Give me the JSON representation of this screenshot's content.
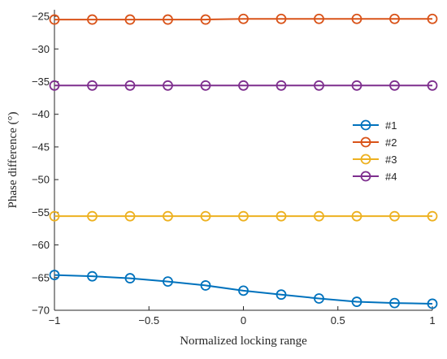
{
  "chart_data": {
    "type": "line",
    "xlabel": "Normalized locking range",
    "ylabel": "Phase difference (°)",
    "xlim": [
      -1,
      1
    ],
    "ylim": [
      -70,
      -24
    ],
    "x_ticks": [
      -1,
      -0.5,
      0,
      0.5,
      1
    ],
    "x_tick_labels": [
      "−1",
      "−0.5",
      "0",
      "0.5",
      "1"
    ],
    "y_ticks": [
      -25,
      -30,
      -35,
      -40,
      -45,
      -50,
      -55,
      -60,
      -65,
      -70
    ],
    "y_tick_labels": [
      "−25",
      "−30",
      "−35",
      "−40",
      "−45",
      "−50",
      "−55",
      "−60",
      "−65",
      "−70"
    ],
    "grid": false,
    "legend_position": "center-right",
    "x": [
      -1,
      -0.8,
      -0.6,
      -0.4,
      -0.2,
      0,
      0.2,
      0.4,
      0.6,
      0.8,
      1
    ],
    "series": [
      {
        "name": "#1",
        "color": "#0072BD",
        "values": [
          -64.6,
          -64.8,
          -65.1,
          -65.6,
          -66.2,
          -67.0,
          -67.6,
          -68.2,
          -68.7,
          -68.9,
          -69.0
        ]
      },
      {
        "name": "#2",
        "color": "#D95319",
        "values": [
          -25.5,
          -25.5,
          -25.5,
          -25.5,
          -25.5,
          -25.4,
          -25.4,
          -25.4,
          -25.4,
          -25.4,
          -25.4
        ]
      },
      {
        "name": "#3",
        "color": "#EDB120",
        "values": [
          -55.6,
          -55.6,
          -55.6,
          -55.6,
          -55.6,
          -55.6,
          -55.6,
          -55.6,
          -55.6,
          -55.6,
          -55.6
        ]
      },
      {
        "name": "#4",
        "color": "#7E2F8E",
        "values": [
          -35.6,
          -35.6,
          -35.6,
          -35.6,
          -35.6,
          -35.6,
          -35.6,
          -35.6,
          -35.6,
          -35.6,
          -35.6
        ]
      }
    ]
  }
}
